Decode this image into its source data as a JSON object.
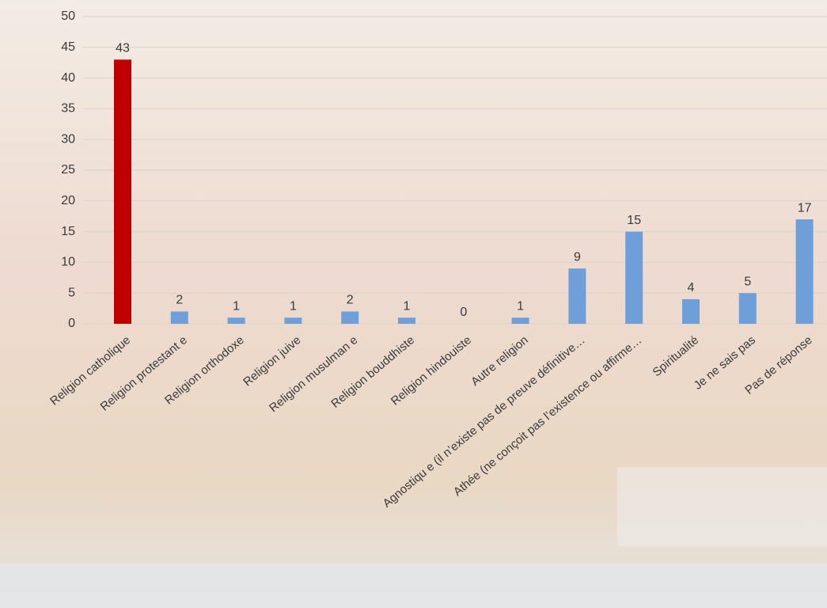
{
  "chart_data": {
    "type": "bar",
    "categories": [
      "Religion catholique",
      "Religion protestant e",
      "Religion orthodoxe",
      "Religion juive",
      "Religion musulman e",
      "Religion bouddhiste",
      "Religion hindouiste",
      "Autre religion",
      "Agnostiqu e (il n’existe pas de preuve définitive…",
      "Athée (ne conçoit pas l’existence ou affirme…",
      "Spiritualité",
      "Je ne sais pas",
      "Pas de réponse"
    ],
    "values": [
      43,
      2,
      1,
      1,
      2,
      1,
      0,
      1,
      9,
      15,
      4,
      5,
      17
    ],
    "colors": [
      "#c00000",
      "#6f9fd8",
      "#6f9fd8",
      "#6f9fd8",
      "#6f9fd8",
      "#6f9fd8",
      "#6f9fd8",
      "#6f9fd8",
      "#6f9fd8",
      "#6f9fd8",
      "#6f9fd8",
      "#6f9fd8",
      "#6f9fd8"
    ],
    "ylim": [
      0,
      50
    ],
    "yticks": [
      0,
      5,
      10,
      15,
      20,
      25,
      30,
      35,
      40,
      45,
      50
    ],
    "grid": true
  }
}
